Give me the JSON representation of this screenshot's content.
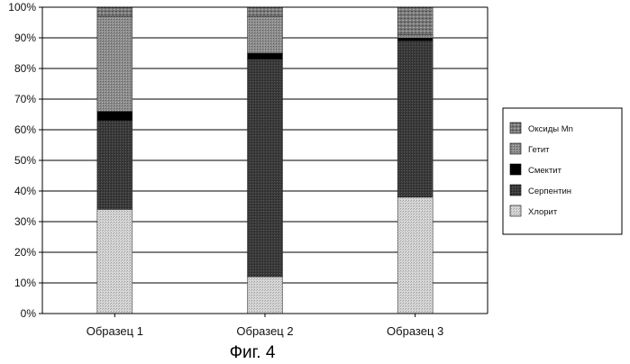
{
  "caption": "Фиг. 4",
  "chart_data": {
    "type": "bar",
    "stacked": true,
    "categories": [
      "Образец 1",
      "Образец 2",
      "Образец 3"
    ],
    "ylim": [
      0,
      100
    ],
    "yticks": [
      "0%",
      "10%",
      "20%",
      "30%",
      "40%",
      "50%",
      "60%",
      "70%",
      "80%",
      "90%",
      "100%"
    ],
    "grid": true,
    "legend_position": "right",
    "series": [
      {
        "name": "Хлорит",
        "values": [
          34,
          12,
          38
        ],
        "color": "#c9c9c9"
      },
      {
        "name": "Серпентин",
        "values": [
          29,
          71,
          51
        ],
        "color": "#3f3f3f"
      },
      {
        "name": "Смектит",
        "values": [
          3,
          2,
          1
        ],
        "color": "#000000"
      },
      {
        "name": "Гетит",
        "values": [
          31,
          12,
          1
        ],
        "color": "#8a8a8a"
      },
      {
        "name": "Оксиды Mn",
        "values": [
          3,
          3,
          9
        ],
        "color": "#6e6e6e"
      }
    ]
  }
}
